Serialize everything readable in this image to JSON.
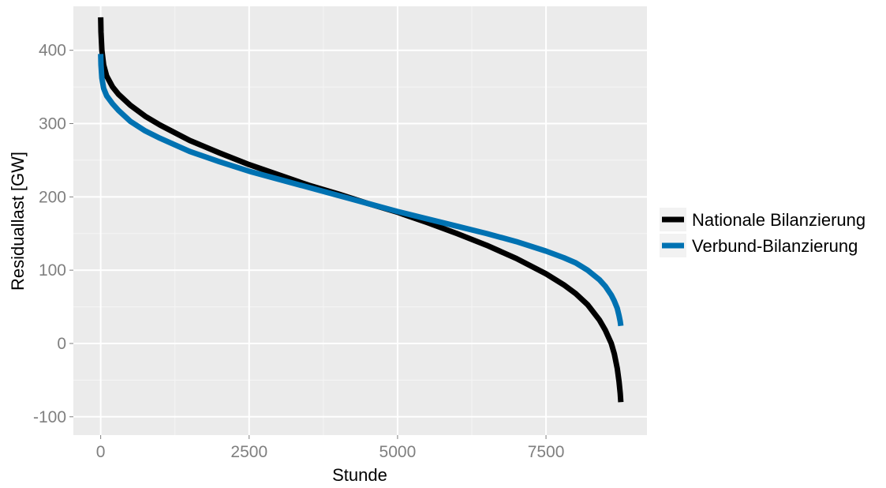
{
  "chart_data": {
    "type": "line",
    "title": "",
    "xlabel": "Stunde",
    "ylabel": "Residuallast [GW]",
    "xlim": [
      -460,
      9200
    ],
    "ylim": [
      -125,
      460
    ],
    "xticks": [
      {
        "value": 0,
        "label": "0"
      },
      {
        "value": 2500,
        "label": "2500"
      },
      {
        "value": 5000,
        "label": "5000"
      },
      {
        "value": 7500,
        "label": "7500"
      }
    ],
    "yticks": [
      {
        "value": -100,
        "label": "-100"
      },
      {
        "value": 0,
        "label": "0"
      },
      {
        "value": 100,
        "label": "100"
      },
      {
        "value": 200,
        "label": "200"
      },
      {
        "value": 300,
        "label": "300"
      },
      {
        "value": 400,
        "label": "400"
      }
    ],
    "grid": true,
    "legend_position": "right",
    "series": [
      {
        "name": "Nationale Bilanzierung",
        "color": "#000000",
        "x": [
          0,
          5,
          20,
          50,
          100,
          200,
          300,
          500,
          750,
          1000,
          1500,
          2000,
          2500,
          3000,
          3500,
          4000,
          4500,
          5000,
          5500,
          6000,
          6500,
          7000,
          7500,
          7800,
          8000,
          8200,
          8400,
          8500,
          8600,
          8650,
          8700,
          8730,
          8750,
          8760
        ],
        "y": [
          445,
          425,
          400,
          380,
          365,
          350,
          340,
          325,
          310,
          298,
          277,
          260,
          244,
          230,
          216,
          204,
          191,
          179,
          165,
          150,
          134,
          116,
          95,
          80,
          68,
          53,
          32,
          18,
          0,
          -14,
          -34,
          -52,
          -68,
          -80
        ]
      },
      {
        "name": "Verbund-Bilanzierung",
        "color": "#0072b2",
        "x": [
          0,
          5,
          20,
          50,
          100,
          200,
          300,
          500,
          750,
          1000,
          1500,
          2000,
          2500,
          3000,
          3500,
          4000,
          4500,
          5000,
          5500,
          6000,
          6500,
          7000,
          7500,
          7800,
          8000,
          8200,
          8400,
          8500,
          8600,
          8650,
          8700,
          8730,
          8750,
          8760
        ],
        "y": [
          395,
          380,
          362,
          348,
          338,
          327,
          318,
          303,
          290,
          280,
          262,
          248,
          235,
          224,
          213,
          202,
          191,
          180,
          170,
          160,
          150,
          139,
          126,
          117,
          110,
          100,
          87,
          78,
          66,
          58,
          48,
          38,
          30,
          24
        ]
      }
    ]
  }
}
